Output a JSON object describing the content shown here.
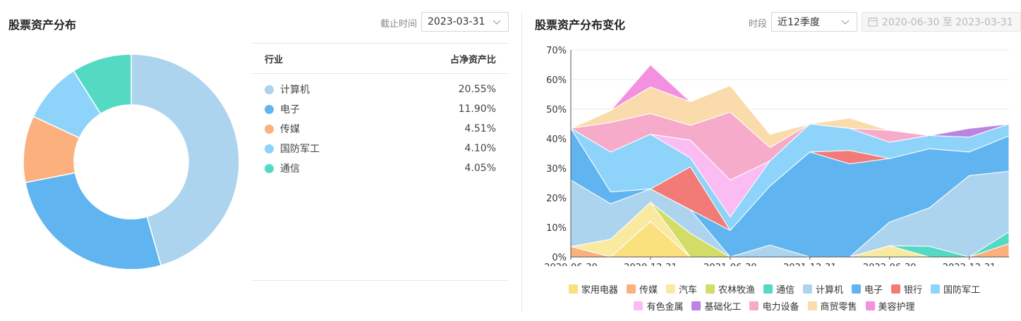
{
  "left_panel": {
    "title": "股票资产分布",
    "cutoff_label": "截止时间",
    "cutoff_value": "2023-03-31",
    "table": {
      "col_industry": "行业",
      "col_ratio": "占净资产比",
      "rows": [
        {
          "name": "计算机",
          "value": "20.55%",
          "color": "#acd4ee"
        },
        {
          "name": "电子",
          "value": "11.90%",
          "color": "#60b5f1"
        },
        {
          "name": "传媒",
          "value": "4.51%",
          "color": "#fbb07e"
        },
        {
          "name": "国防军工",
          "value": "4.10%",
          "color": "#8ed3fa"
        },
        {
          "name": "通信",
          "value": "4.05%",
          "color": "#54dac2"
        }
      ]
    },
    "donut": {
      "values": [
        20.55,
        11.9,
        4.51,
        4.1,
        4.05
      ],
      "colors": [
        "#acd4ee",
        "#60b5f1",
        "#fbb07e",
        "#8ed3fa",
        "#54dac2"
      ]
    }
  },
  "right_panel": {
    "title": "股票资产分布变化",
    "period_label": "时段",
    "period_value": "近12季度",
    "date_range": "2020-06-30 至 2023-03-31"
  },
  "chart_data": {
    "type": "area",
    "stacked": true,
    "x": [
      "2020-06-30",
      "2020-09-30",
      "2020-12-31",
      "2021-03-31",
      "2021-06-30",
      "2021-09-30",
      "2021-12-31",
      "2022-03-31",
      "2022-06-30",
      "2022-09-30",
      "2022-12-31",
      "2023-03-31"
    ],
    "x_tick_labels": [
      "2020-06-30",
      "2020-12-31",
      "2021-06-30",
      "2021-12-31",
      "2022-06-30",
      "2022-12-31"
    ],
    "ylim": [
      0,
      70
    ],
    "y_ticks": [
      "0%",
      "10%",
      "20%",
      "30%",
      "40%",
      "50%",
      "60%",
      "70%"
    ],
    "grid": true,
    "legend_position": "bottom",
    "series": [
      {
        "name": "家用电器",
        "color": "#fbe07e",
        "values": [
          0,
          0,
          12,
          0,
          0,
          0,
          0,
          0,
          0,
          0,
          0,
          0
        ]
      },
      {
        "name": "传媒",
        "color": "#fbb07e",
        "values": [
          3.5,
          0,
          0,
          0,
          0,
          0,
          0,
          0,
          0,
          0,
          0,
          4.5
        ]
      },
      {
        "name": "汽车",
        "color": "#faeaa0",
        "values": [
          0,
          6,
          6.5,
          0,
          0,
          0,
          0,
          0,
          3.8,
          0,
          0,
          0
        ]
      },
      {
        "name": "农林牧渔",
        "color": "#d2dc66",
        "values": [
          0,
          0,
          0,
          8,
          0,
          0,
          0,
          0,
          0,
          0,
          0,
          0
        ]
      },
      {
        "name": "通信",
        "color": "#54dac2",
        "values": [
          0,
          0,
          0,
          0,
          0,
          0,
          0,
          0,
          0,
          3.6,
          0,
          4.0
        ]
      },
      {
        "name": "计算机",
        "color": "#acd4ee",
        "values": [
          22.5,
          12,
          4.5,
          8,
          0,
          4,
          0,
          0,
          8,
          13,
          27.5,
          20.5
        ]
      },
      {
        "name": "电子",
        "color": "#60b5f1",
        "values": [
          17.5,
          4,
          0,
          0,
          9,
          20,
          35.5,
          31.5,
          21.5,
          20,
          8,
          12
        ]
      },
      {
        "name": "银行",
        "color": "#f27b78",
        "values": [
          0,
          0,
          0,
          14.5,
          0,
          0,
          0,
          4.5,
          0,
          0,
          0,
          0
        ]
      },
      {
        "name": "国防军工",
        "color": "#8ed3fa",
        "values": [
          0,
          13.5,
          18.5,
          3,
          4.5,
          8.5,
          9.5,
          7.5,
          5.5,
          4.5,
          5,
          4
        ]
      },
      {
        "name": "有色金属",
        "color": "#fbbcf4",
        "values": [
          0,
          0,
          0,
          6,
          12.5,
          0,
          0,
          0,
          0,
          0,
          0,
          0
        ]
      },
      {
        "name": "基础化工",
        "color": "#bb84e2",
        "values": [
          0,
          0,
          0,
          0,
          0,
          0,
          0,
          0,
          0,
          0,
          3,
          0
        ]
      },
      {
        "name": "电力设备",
        "color": "#f6abcb",
        "values": [
          0,
          10,
          7,
          5,
          23,
          4.5,
          0,
          0,
          4,
          0,
          0,
          0
        ]
      },
      {
        "name": "商贸零售",
        "color": "#fadcac",
        "values": [
          0,
          4,
          9,
          8,
          9,
          4.5,
          0,
          3.5,
          0,
          0,
          0,
          0
        ]
      },
      {
        "name": "美容护理",
        "color": "#f490e0",
        "values": [
          0,
          0,
          7.5,
          0,
          0,
          0,
          0,
          0,
          0,
          0,
          0,
          0
        ]
      }
    ]
  }
}
